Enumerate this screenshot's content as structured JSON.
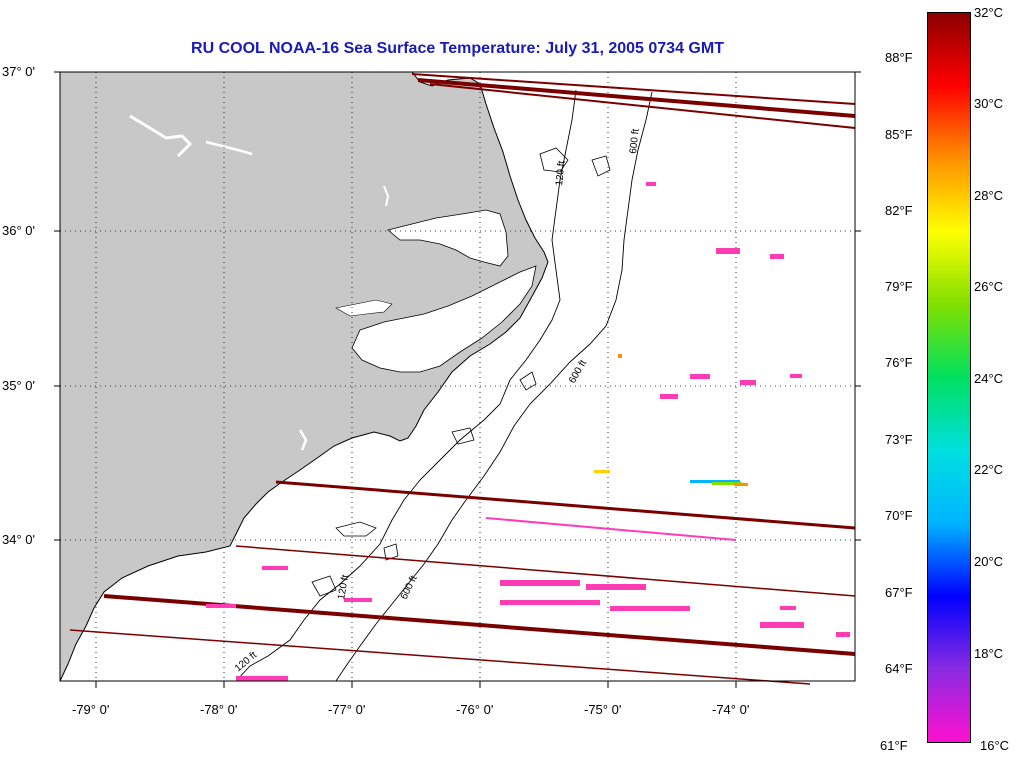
{
  "title": "RU COOL  NOAA-16  Sea Surface Temperature:  July 31, 2005 0734 GMT",
  "latitude_labels": [
    "37° 0'",
    "36° 0'",
    "35° 0'",
    "34° 0'"
  ],
  "longitude_labels": [
    "-79° 0'",
    "-78° 0'",
    "-77° 0'",
    "-76° 0'",
    "-75° 0'",
    "-74° 0'"
  ],
  "contour_labels": [
    "120 ft",
    "600 ft"
  ],
  "colorbar": {
    "fahrenheit_labels": [
      "88°F",
      "85°F",
      "82°F",
      "79°F",
      "76°F",
      "73°F",
      "70°F",
      "67°F",
      "64°F",
      "61°F"
    ],
    "celsius_labels": [
      "32°C",
      "30°C",
      "28°C",
      "26°C",
      "24°C",
      "22°C",
      "20°C",
      "18°C",
      "16°C"
    ],
    "colors": [
      "#ff10d0",
      "#8a2be2",
      "#0000ff",
      "#00b4ff",
      "#00e0e0",
      "#00e060",
      "#80e000",
      "#ffff00",
      "#ff9000",
      "#ff0000",
      "#8b0000"
    ]
  },
  "colors": {
    "land": "#c8c8c8",
    "ocean": "#ffffff",
    "title": "#1a1ab4",
    "swath_line": "#7a0000",
    "cold_pixels": "#ff3cb4"
  }
}
